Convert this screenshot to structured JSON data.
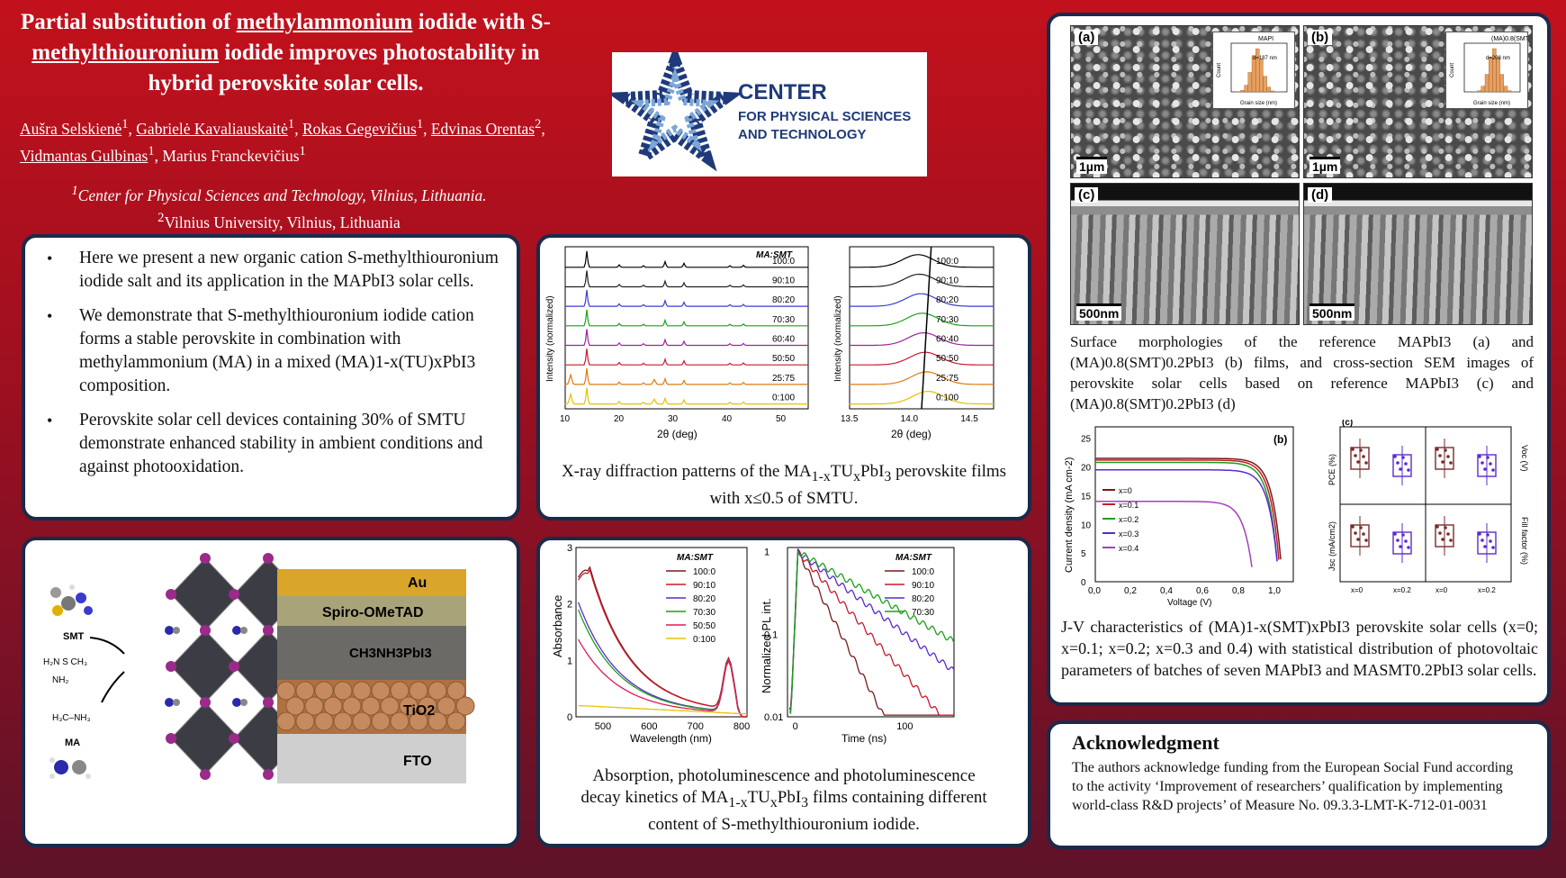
{
  "title": {
    "pre": "Partial substitution of ",
    "u1": "methylammonium",
    "mid": " iodide with S-",
    "u2": "methylthiouronium",
    "post": " iodide improves photostability  in hybrid perovskite solar cells."
  },
  "authors": {
    "a1": "Aušra Selskienė",
    "a2": "Gabrielė Kavaliauskaitė",
    "a3": "Rokas Gegevičius",
    "a4": "Edvinas Orentas",
    "a5": "Vidmantas Gulbinas",
    "a6": "Marius Franckevičius",
    "sup1": "1",
    "sup2": "2"
  },
  "affiliations": {
    "line1": "Center for Physical Sciences and Technology, Vilnius, Lithuania.",
    "line2": "Vilnius University, Vilnius, Lithuania"
  },
  "logo": {
    "line1": "CENTER",
    "line2": "FOR PHYSICAL SCIENCES",
    "line3": "AND TECHNOLOGY",
    "color_blue": "#1f3a7a",
    "color_accent": "#7aa6d8"
  },
  "bullets": [
    "Here we present a new organic cation S-methylthiouronium iodide salt and its application in the MAPbI3 solar cells.",
    "We demonstrate that S-methylthiouronium iodide cation forms a stable perovskite in combination with methylammonium (MA) in a mixed (MA)1-x(TU)xPbI3 composition.",
    "Perovskite solar cell devices containing 30% of SMTU demonstrate enhanced stability in ambient conditions and against photooxidation."
  ],
  "xrd": {
    "legend_title": "MA:SMT",
    "ylabel": "Intensity (normalized)",
    "xlabel": "2θ (deg)",
    "ratios": [
      "100:0",
      "90:10",
      "80:20",
      "70:30",
      "60:40",
      "50:50",
      "25:75",
      "0:100"
    ],
    "colors": [
      "#000000",
      "#222222",
      "#3b3bd9",
      "#1aa11a",
      "#a020a0",
      "#c81a2e",
      "#e07a10",
      "#e6c200"
    ],
    "xticks_left": [
      "10",
      "20",
      "30",
      "40",
      "50"
    ],
    "xticks_right": [
      "13.5",
      "14.0",
      "14.5"
    ],
    "caption_a": "X-ray diffraction patterns of the MA",
    "sub1": "1-x",
    "caption_b": "TU",
    "sub2": "x",
    "caption_c": "PbI",
    "sub3": "3",
    "caption_d": " perovskite films with x≤0.5 of SMTU."
  },
  "structure": {
    "smt_label": "SMT",
    "ma_label": "MA",
    "layers": [
      "Au",
      "Spiro-OMeTAD",
      "CH3NH3PbI3",
      "TiO2",
      "FTO"
    ]
  },
  "abspl": {
    "legend_title": "MA:SMT",
    "abs_ylabel": "Absorbance",
    "abs_xlabel": "Wavelength (nm)",
    "pl_ylabel": "Normalized PL int.",
    "pl_xlabel": "Time (ns)",
    "abs_ratios": [
      "100:0",
      "90:10",
      "80:20",
      "70:30",
      "50:50",
      "0:100"
    ],
    "abs_colors": [
      "#7a1a1a",
      "#c81a2e",
      "#5a2ad0",
      "#1aa11a",
      "#e01a5a",
      "#e6c200"
    ],
    "pl_ratios": [
      "100:0",
      "90:10",
      "80:20",
      "70:30"
    ],
    "pl_colors": [
      "#7a1a1a",
      "#c81a2e",
      "#5a2ad0",
      "#1aa11a"
    ],
    "abs_xticks": [
      "500",
      "600",
      "700",
      "800"
    ],
    "abs_yticks": [
      "0",
      "1",
      "2",
      "3"
    ],
    "pl_xticks": [
      "0",
      "100"
    ],
    "pl_yticks": [
      "1",
      "0.1",
      "0.01"
    ],
    "caption_line1": "Absorption, photoluminescence and photoluminescence",
    "caption_line2a": "decay kinetics of  MA",
    "sub1": "1-x",
    "caption_line2b": "TU",
    "sub2": "x",
    "caption_line2c": "PbI",
    "sub3": "3",
    "caption_line2d": " films containing different",
    "caption_line3": "content of S-methylthiouronium iodide."
  },
  "sem": {
    "labels": [
      "(a)",
      "(b)",
      "(c)",
      "(d)"
    ],
    "scale_top": "1µm",
    "scale_bottom": "500nm",
    "inset_a_title": "MAPI",
    "inset_a_d": "d=187 nm",
    "inset_b_title": "(MA)0.8(SMT)0.2PbI3",
    "inset_b_d": "d=208 nm",
    "inset_ylabel": "Count",
    "inset_xlabel": "Grain size (nm)",
    "caption": "Surface morphologies of  the reference MAPbI3 (a) and (MA)0.8(SMT)0.2PbI3 (b) films, and cross-section SEM images of perovskite solar cells based on reference MAPbI3 (c) and (MA)0.8(SMT)0.2PbI3 (d)"
  },
  "jv": {
    "panel_b": "(b)",
    "panel_c": "(c)",
    "ylabel": "Current density (mA cm-2)",
    "xlabel": "Voltage (V)",
    "xticks": [
      "0,0",
      "0,2",
      "0,4",
      "0,6",
      "0,8",
      "1,0"
    ],
    "yticks": [
      "0",
      "5",
      "10",
      "15",
      "20",
      "25"
    ],
    "series": [
      "x=0",
      "x=0.1",
      "x=0.2",
      "x=0.3",
      "x=0.4"
    ],
    "colors": [
      "#7a1a1a",
      "#c81a2e",
      "#1aa11a",
      "#5a2ad0",
      "#a040c0"
    ],
    "stat_labels": {
      "pce": "PCE (%)",
      "voc": "Voc (V)",
      "jsc": "Jsc (mA/cm2)",
      "ff": "Fill factor (%)"
    },
    "stat_x": [
      "x=0",
      "x=0.2",
      "x=0",
      "x=0.2"
    ],
    "caption": "J-V characteristics of (MA)1-x(SMT)xPbI3 perovskite solar cells (x=0; x=0.1; x=0.2; x=0.3 and 0.4) with statistical distribution of photovoltaic parameters of batches of seven MAPbI3 and MASMT0.2PbI3 solar cells."
  },
  "ack": {
    "title": "Acknowledgment",
    "text": "The authors acknowledge funding from the European Social Fund according to the activity ‘Improvement of researchers’ qualification by implementing world-class R&D projects’ of Measure No. 09.3.3-LMT-K-712-01-0031"
  }
}
